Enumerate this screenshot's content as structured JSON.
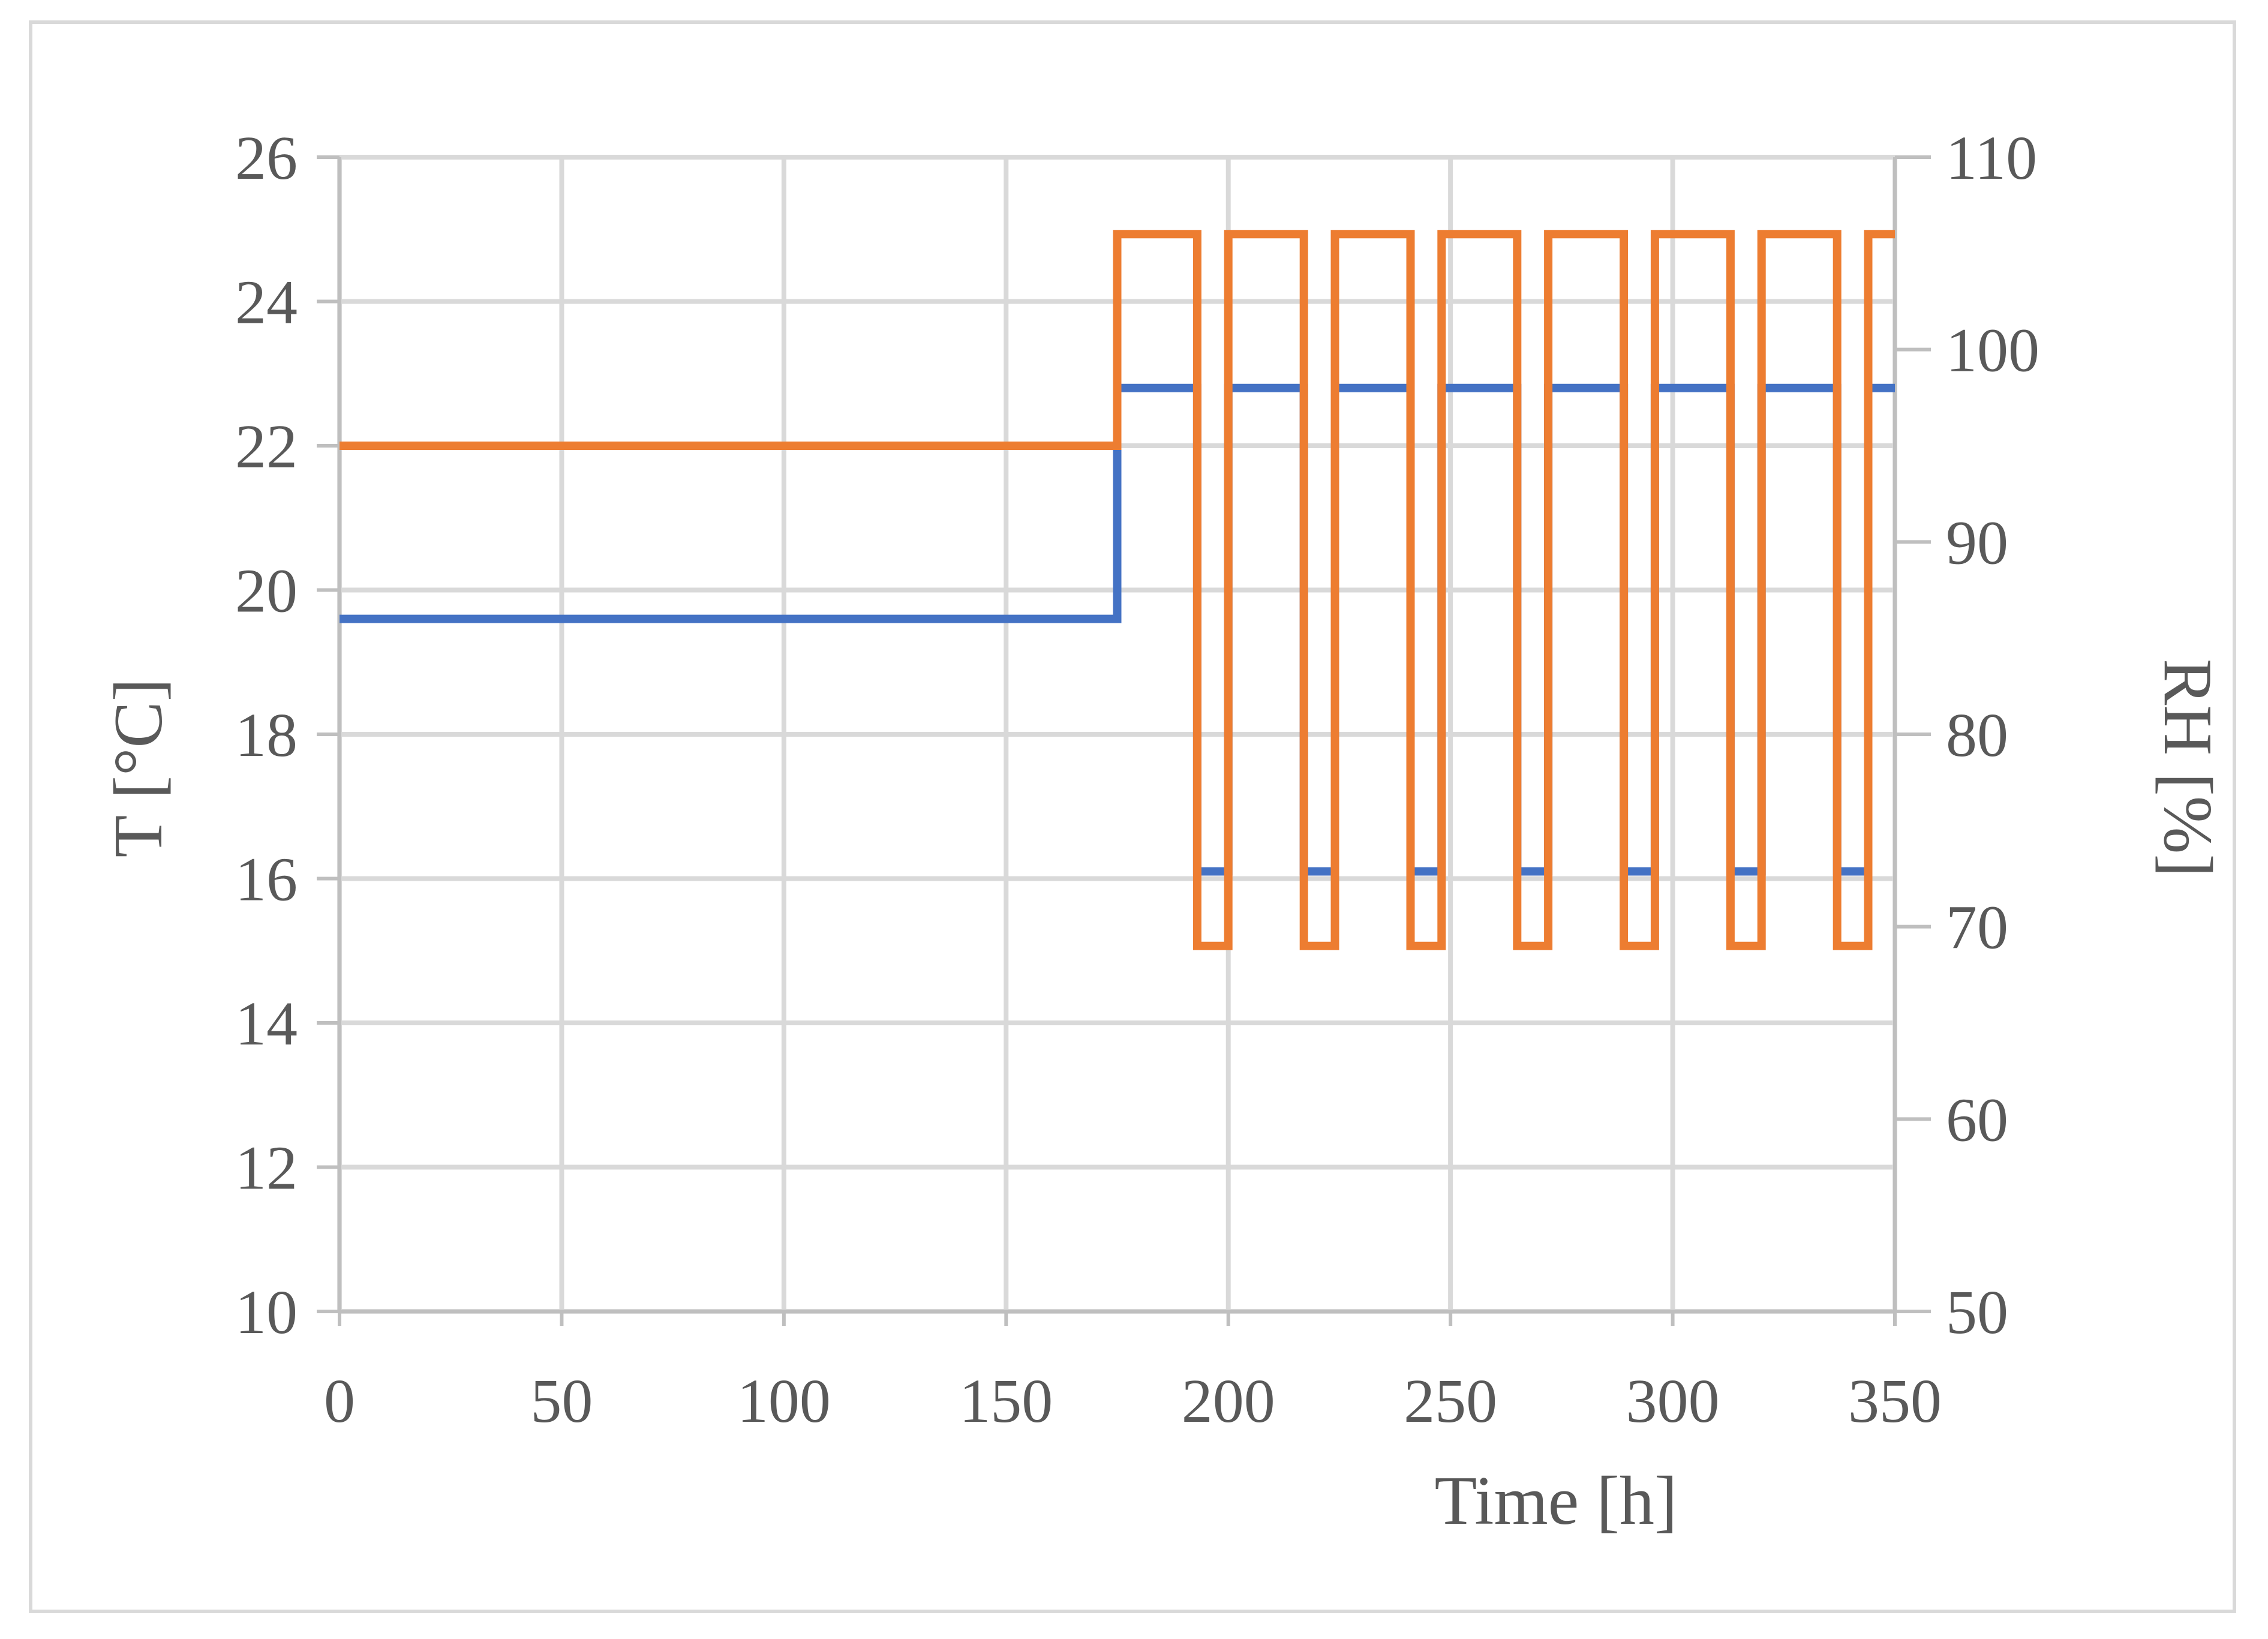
{
  "chart_data": {
    "type": "line",
    "step": true,
    "xlabel": "Time [h]",
    "ylabel": "T [°C]",
    "y2label": "RH [%]",
    "xlim": [
      0,
      350
    ],
    "ylim": [
      10,
      26
    ],
    "y2lim": [
      50,
      110
    ],
    "xticks": [
      0,
      50,
      100,
      150,
      200,
      250,
      300,
      350
    ],
    "yticks": [
      10,
      12,
      14,
      16,
      18,
      20,
      22,
      24,
      26
    ],
    "y2ticks": [
      50,
      60,
      70,
      80,
      90,
      100,
      110
    ],
    "grid": true,
    "legend": "none",
    "series": [
      {
        "axis": "left",
        "color": "#4472C4",
        "x": [
          0,
          175,
          175,
          193,
          193,
          200,
          200,
          217,
          217,
          224,
          224,
          241,
          241,
          248,
          248,
          265,
          265,
          272,
          272,
          289,
          289,
          296,
          296,
          313,
          313,
          320,
          320,
          337,
          337,
          344,
          344,
          350
        ],
        "y": [
          19.6,
          19.6,
          22.8,
          22.8,
          16.1,
          16.1,
          22.8,
          22.8,
          16.1,
          16.1,
          22.8,
          22.8,
          16.1,
          16.1,
          22.8,
          22.8,
          16.1,
          16.1,
          22.8,
          22.8,
          16.1,
          16.1,
          22.8,
          22.8,
          16.1,
          16.1,
          22.8,
          22.8,
          16.1,
          16.1,
          22.8,
          22.8
        ]
      },
      {
        "axis": "right",
        "color": "#ED7D31",
        "x": [
          0,
          175,
          175,
          193,
          193,
          200,
          200,
          217,
          217,
          224,
          224,
          241,
          241,
          248,
          248,
          265,
          265,
          272,
          272,
          289,
          289,
          296,
          296,
          313,
          313,
          320,
          320,
          337,
          337,
          344,
          344,
          350
        ],
        "y": [
          95,
          95,
          106,
          106,
          69,
          69,
          106,
          106,
          69,
          69,
          106,
          106,
          69,
          69,
          106,
          106,
          69,
          69,
          106,
          106,
          69,
          69,
          106,
          106,
          69,
          69,
          106,
          106,
          69,
          69,
          106,
          106
        ]
      }
    ]
  }
}
